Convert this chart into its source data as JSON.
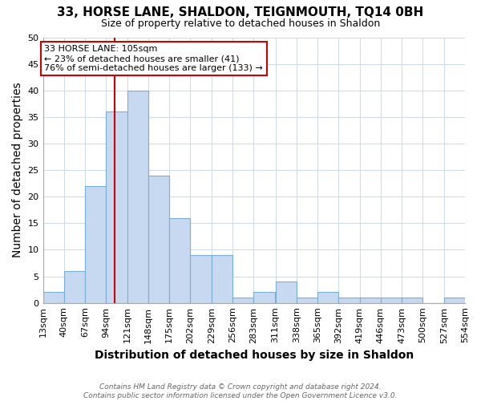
{
  "title1": "33, HORSE LANE, SHALDON, TEIGNMOUTH, TQ14 0BH",
  "title2": "Size of property relative to detached houses in Shaldon",
  "xlabel": "Distribution of detached houses by size in Shaldon",
  "ylabel": "Number of detached properties",
  "footnote1": "Contains HM Land Registry data © Crown copyright and database right 2024.",
  "footnote2": "Contains public sector information licensed under the Open Government Licence v3.0.",
  "bin_edges": [
    13,
    40,
    67,
    94,
    121,
    148,
    175,
    202,
    229,
    256,
    283,
    311,
    338,
    365,
    392,
    419,
    446,
    473,
    500,
    527,
    554
  ],
  "bar_heights": [
    2,
    6,
    22,
    36,
    40,
    24,
    16,
    9,
    9,
    1,
    2,
    4,
    1,
    2,
    1,
    1,
    1,
    1,
    0,
    1
  ],
  "bar_color": "#c6d9f0",
  "bar_edgecolor": "#7bafd4",
  "vline_x": 105,
  "vline_color": "#cc0000",
  "ylim": [
    0,
    50
  ],
  "yticks": [
    0,
    5,
    10,
    15,
    20,
    25,
    30,
    35,
    40,
    45,
    50
  ],
  "annotation_title": "33 HORSE LANE: 105sqm",
  "annotation_line1": "← 23% of detached houses are smaller (41)",
  "annotation_line2": "76% of semi-detached houses are larger (133) →",
  "annotation_box_color": "#ffffff",
  "annotation_box_edgecolor": "#cc0000",
  "background_color": "#ffffff",
  "grid_color": "#d0dce8",
  "tick_label_fontsize": 8,
  "axis_label_fontsize": 10,
  "title1_fontsize": 11,
  "title2_fontsize": 9
}
